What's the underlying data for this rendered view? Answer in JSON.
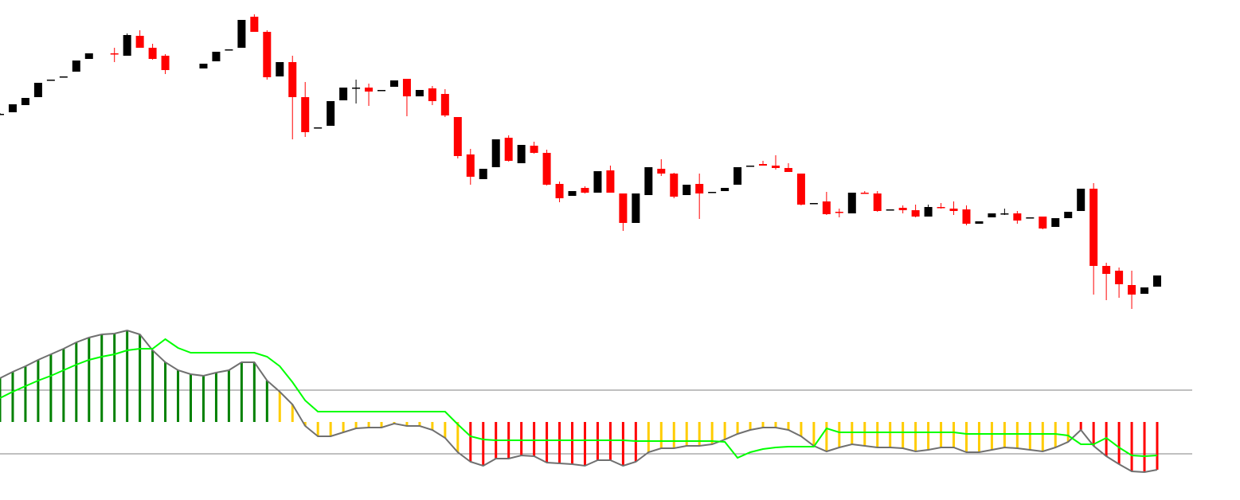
{
  "chart_data": [
    {
      "type": "candlestick",
      "x": [
        0,
        1,
        2,
        3,
        4,
        5,
        6,
        7,
        9,
        10,
        11,
        12,
        13,
        16,
        17,
        18,
        19,
        20,
        21,
        22,
        23,
        24,
        25,
        26,
        27,
        28,
        29,
        30,
        31,
        32,
        33,
        34,
        35,
        36,
        37,
        38,
        39,
        40,
        41,
        42,
        43,
        44,
        45,
        46,
        47,
        48,
        49,
        50,
        51,
        52,
        53,
        54,
        55,
        56,
        57,
        58,
        59,
        60,
        61,
        62,
        63,
        64,
        65,
        66,
        67,
        68,
        69,
        70,
        71,
        72,
        73,
        74,
        75,
        76,
        77,
        78,
        79,
        80,
        81,
        82,
        83,
        84,
        85,
        86,
        87,
        88,
        89,
        90,
        91
      ],
      "open": [
        257,
        259,
        268,
        278,
        300,
        303,
        310,
        326,
        333,
        330,
        355,
        340,
        330,
        314,
        323,
        338,
        340,
        379,
        360,
        304,
        322,
        278,
        240,
        242,
        274,
        290,
        290,
        287,
        291,
        301,
        279,
        289,
        282,
        253,
        206,
        175,
        190,
        227,
        195,
        217,
        208,
        169,
        154,
        164,
        158,
        186,
        157,
        120,
        155,
        188,
        182,
        155,
        169,
        159,
        160,
        168,
        191,
        194,
        192,
        189,
        182,
        145,
        147,
        134,
        132,
        158,
        157,
        137,
        139,
        136,
        128,
        140,
        138,
        137,
        119,
        127,
        132,
        132,
        127,
        128,
        115,
        126,
        135,
        163,
        66,
        60,
        42,
        31,
        40
      ],
      "high": [
        258,
        269,
        277,
        296,
        300,
        304,
        324,
        333,
        340,
        358,
        362,
        345,
        332,
        320,
        335,
        338,
        375,
        382,
        362,
        322,
        330,
        297,
        240,
        273,
        290,
        300,
        295,
        287,
        299,
        301,
        287,
        292,
        288,
        253,
        213,
        188,
        225,
        230,
        218,
        222,
        212,
        172,
        160,
        166,
        185,
        192,
        157,
        157,
        190,
        200,
        183,
        168,
        182,
        159,
        164,
        190,
        192,
        198,
        205,
        195,
        182,
        145,
        159,
        138,
        158,
        160,
        160,
        137,
        142,
        143,
        143,
        145,
        147,
        142,
        122,
        132,
        138,
        135,
        127,
        128,
        126,
        134,
        163,
        170,
        70,
        64,
        60,
        39,
        54
      ],
      "low": [
        256,
        259,
        268,
        278,
        300,
        303,
        310,
        326,
        322,
        330,
        340,
        325,
        307,
        314,
        323,
        338,
        340,
        360,
        300,
        304,
        225,
        228,
        240,
        242,
        274,
        270,
        267,
        287,
        291,
        254,
        279,
        268,
        253,
        201,
        168,
        175,
        190,
        197,
        195,
        207,
        167,
        146,
        154,
        157,
        158,
        158,
        110,
        120,
        155,
        179,
        151,
        155,
        125,
        159,
        160,
        168,
        191,
        192,
        187,
        184,
        142,
        145,
        130,
        127,
        132,
        157,
        134,
        137,
        132,
        127,
        128,
        138,
        130,
        117,
        119,
        127,
        130,
        119,
        127,
        112,
        115,
        126,
        135,
        30,
        23,
        26,
        12,
        31,
        40
      ],
      "close": [
        257,
        269,
        277,
        296,
        300,
        304,
        324,
        333,
        332,
        356,
        340,
        326,
        312,
        320,
        335,
        338,
        375,
        360,
        303,
        322,
        278,
        234,
        240,
        273,
        290,
        290,
        285,
        287,
        299,
        279,
        287,
        273,
        255,
        204,
        178,
        188,
        225,
        198,
        218,
        208,
        168,
        151,
        160,
        158,
        185,
        158,
        120,
        157,
        190,
        182,
        153,
        168,
        157,
        159,
        164,
        190,
        192,
        192,
        189,
        184,
        143,
        145,
        131,
        133,
        158,
        157,
        135,
        137,
        136,
        128,
        140,
        139,
        135,
        119,
        122,
        132,
        132,
        123,
        127,
        113,
        126,
        134,
        163,
        66,
        56,
        43,
        30,
        39,
        54
      ],
      "xlim": [
        0,
        91
      ],
      "ylim": [
        0,
        400
      ],
      "up_color": "#000000",
      "down_color": "#ff0000"
    },
    {
      "type": "oscillator",
      "x": [
        0,
        1,
        2,
        3,
        4,
        5,
        6,
        7,
        8,
        9,
        10,
        11,
        12,
        13,
        14,
        15,
        16,
        17,
        18,
        19,
        20,
        21,
        22,
        23,
        24,
        25,
        26,
        27,
        28,
        29,
        30,
        31,
        32,
        33,
        34,
        35,
        36,
        37,
        38,
        39,
        40,
        41,
        42,
        43,
        44,
        45,
        46,
        47,
        48,
        49,
        50,
        51,
        52,
        53,
        54,
        55,
        56,
        57,
        58,
        59,
        60,
        61,
        62,
        63,
        64,
        65,
        66,
        67,
        68,
        69,
        70,
        71,
        72,
        73,
        74,
        75,
        76,
        77,
        78,
        79,
        80,
        81,
        82,
        83,
        84,
        85,
        86,
        87,
        88,
        89,
        90,
        91
      ],
      "xlim": [
        0,
        91
      ],
      "ylim": [
        -98,
        130
      ],
      "levels": [
        40,
        -40
      ],
      "level_color": "#808080",
      "series": [
        {
          "color": "#707070",
          "values": [
            55,
            63,
            70,
            78,
            85,
            92,
            100,
            106,
            110,
            111,
            115,
            110,
            90,
            75,
            65,
            60,
            58,
            62,
            65,
            75,
            75,
            52,
            38,
            22,
            -5,
            -18,
            -18,
            -13,
            -8,
            -7,
            -7,
            -2,
            -5,
            -5,
            -10,
            -20,
            -38,
            -50,
            -55,
            -46,
            -46,
            -42,
            -43,
            -51,
            -52,
            -53,
            -55,
            -48,
            -48,
            -55,
            -50,
            -38,
            -33,
            -33,
            -30,
            -30,
            -28,
            -22,
            -15,
            -10,
            -7,
            -7,
            -10,
            -18,
            -30,
            -37,
            -32,
            -28,
            -30,
            -32,
            -32,
            -33,
            -37,
            -35,
            -32,
            -32,
            -38,
            -38,
            -35,
            -32,
            -33,
            -35,
            -37,
            -32,
            -25,
            -10,
            -30,
            -43,
            -53,
            -62,
            -63,
            -60
          ]
        },
        {
          "color": "#00ff00",
          "values": [
            30,
            38,
            45,
            52,
            58,
            65,
            72,
            78,
            82,
            85,
            90,
            92,
            92,
            104,
            93,
            87,
            87,
            87,
            87,
            87,
            87,
            82,
            70,
            50,
            27,
            13,
            13,
            13,
            13,
            13,
            13,
            13,
            13,
            13,
            13,
            13,
            -3,
            -18,
            -22,
            -23,
            -23,
            -23,
            -23,
            -23,
            -23,
            -23,
            -23,
            -23,
            -23,
            -23,
            -24,
            -24,
            -24,
            -24,
            -24,
            -24,
            -24,
            -25,
            -45,
            -38,
            -34,
            -32,
            -31,
            -31,
            -31,
            -8,
            -13,
            -13,
            -13,
            -13,
            -13,
            -13,
            -13,
            -13,
            -13,
            -13,
            -15,
            -15,
            -15,
            -15,
            -15,
            -15,
            -15,
            -15,
            -17,
            -28,
            -28,
            -20,
            -32,
            -42,
            -43,
            -42
          ]
        }
      ],
      "bar_colors": [
        "#008000",
        "#008000",
        "#008000",
        "#008000",
        "#008000",
        "#008000",
        "#008000",
        "#008000",
        "#008000",
        "#008000",
        "#008000",
        "#008000",
        "#008000",
        "#008000",
        "#008000",
        "#008000",
        "#008000",
        "#008000",
        "#008000",
        "#008000",
        "#008000",
        "#008000",
        "#ffcc00",
        "#ffcc00",
        "#ffcc00",
        "#ffcc00",
        "#ffcc00",
        "#ffcc00",
        "#ffcc00",
        "#ffcc00",
        "#ffcc00",
        "#ffcc00",
        "#ffcc00",
        "#ffcc00",
        "#ffcc00",
        "#ffcc00",
        "#ffcc00",
        "#ff0000",
        "#ff0000",
        "#ff0000",
        "#ff0000",
        "#ff0000",
        "#ff0000",
        "#ff0000",
        "#ff0000",
        "#ff0000",
        "#ff0000",
        "#ff0000",
        "#ff0000",
        "#ff0000",
        "#ff0000",
        "#ffcc00",
        "#ffcc00",
        "#ffcc00",
        "#ffcc00",
        "#ffcc00",
        "#ffcc00",
        "#ffcc00",
        "#ffcc00",
        "#ffcc00",
        "#ffcc00",
        "#ffcc00",
        "#ffcc00",
        "#ffcc00",
        "#ffcc00",
        "#ffcc00",
        "#ffcc00",
        "#ffcc00",
        "#ffcc00",
        "#ffcc00",
        "#ffcc00",
        "#ffcc00",
        "#ffcc00",
        "#ffcc00",
        "#ffcc00",
        "#ffcc00",
        "#ffcc00",
        "#ffcc00",
        "#ffcc00",
        "#ffcc00",
        "#ffcc00",
        "#ffcc00",
        "#ffcc00",
        "#ffcc00",
        "#ffcc00",
        "#ff0000",
        "#ff0000",
        "#ff0000",
        "#ff0000",
        "#ff0000",
        "#ff0000",
        "#ff0000"
      ]
    }
  ]
}
